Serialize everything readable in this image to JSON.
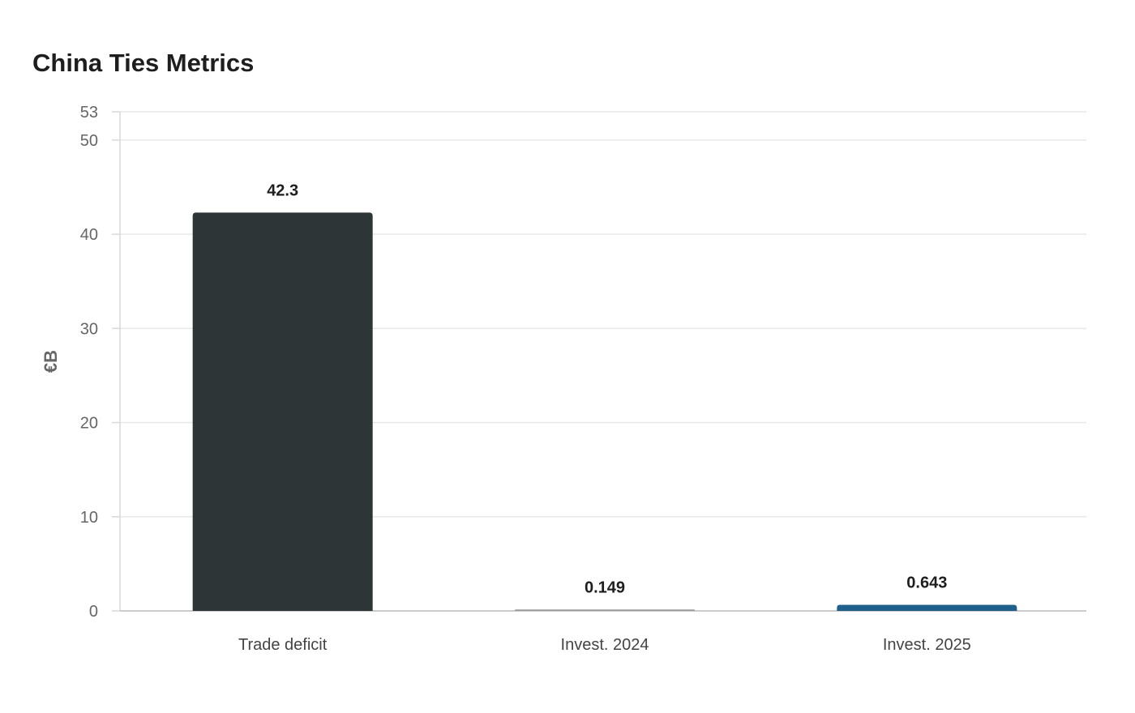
{
  "chart_data": {
    "type": "bar",
    "title": "China Ties Metrics",
    "ylabel": "€B",
    "xlabel": "",
    "categories": [
      "Trade deficit",
      "Invest. 2024",
      "Invest. 2025"
    ],
    "values": [
      42.3,
      0.149,
      0.643
    ],
    "value_labels": [
      "42.3",
      "0.149",
      "0.643"
    ],
    "bar_colors": [
      "#2e3537",
      "#9a9a9a",
      "#1f5f8b"
    ],
    "ylim": [
      0,
      53
    ],
    "yticks": [
      0,
      10,
      20,
      30,
      40,
      50,
      53
    ],
    "grid": true,
    "legend": "none"
  }
}
